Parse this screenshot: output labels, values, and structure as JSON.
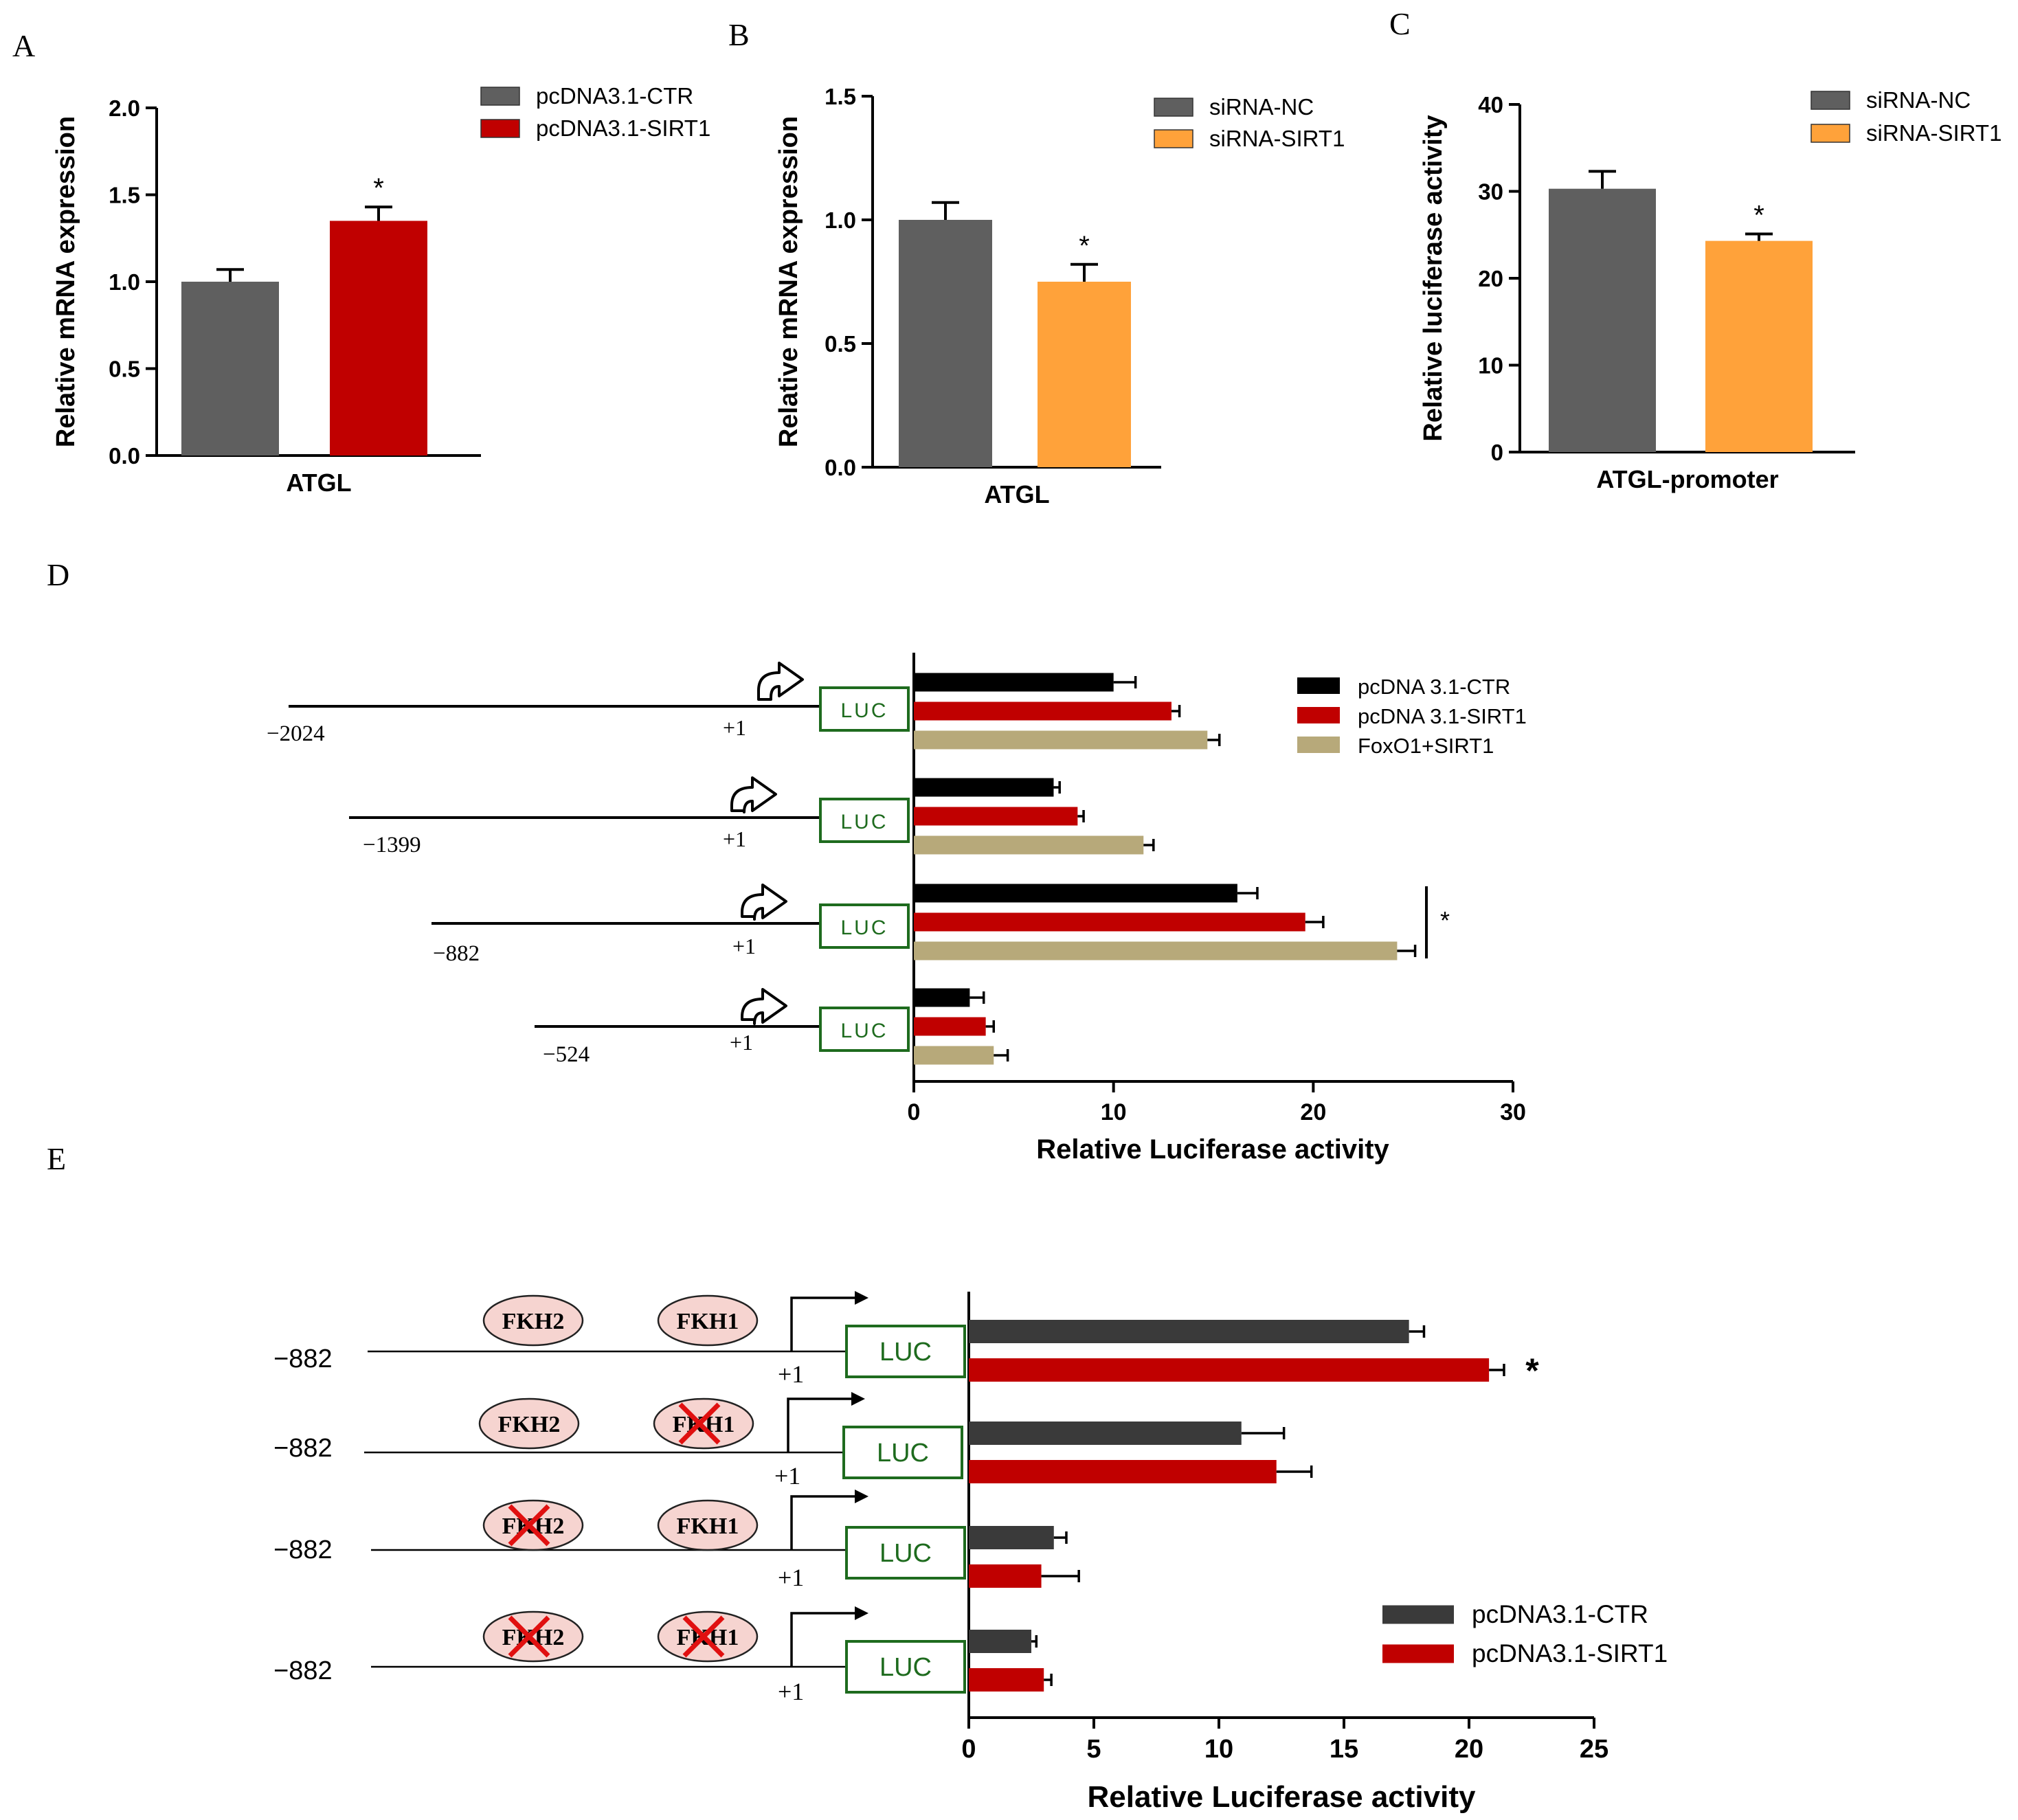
{
  "colors": {
    "dark_gray": "#5f5f5f",
    "dark_gray_e": "#3a3a3a",
    "red": "#c00000",
    "orange": "#ffa23a",
    "black": "#000000",
    "tan": "#b7a97a",
    "luc_green": "#1e6b1e",
    "fkh_fill": "#f6d4d0",
    "cross_red": "#e01010"
  },
  "panel_labels": {
    "a": "A",
    "b": "B",
    "c": "C",
    "d": "D",
    "e": "E"
  },
  "chart_data": [
    {
      "id": "A",
      "type": "bar",
      "ylabel": "Relative mRNA expression",
      "xlabel": "ATGL",
      "ylim": [
        0,
        2.0
      ],
      "yticks": [
        "0.0",
        "0.5",
        "1.0",
        "1.5",
        "2.0"
      ],
      "categories": [
        "ATGL"
      ],
      "series": [
        {
          "name": "pcDNA3.1-CTR",
          "value": 1.0,
          "error": 0.07,
          "color": "#5f5f5f"
        },
        {
          "name": "pcDNA3.1-SIRT1",
          "value": 1.35,
          "error": 0.08,
          "color": "#c00000"
        }
      ],
      "annotations": [
        {
          "series": 1,
          "text": "*"
        }
      ]
    },
    {
      "id": "B",
      "type": "bar",
      "ylabel": "Relative mRNA expression",
      "xlabel": "ATGL",
      "ylim": [
        0,
        1.5
      ],
      "yticks": [
        "0.0",
        "0.5",
        "1.0",
        "1.5"
      ],
      "categories": [
        "ATGL"
      ],
      "series": [
        {
          "name": "siRNA-NC",
          "value": 1.0,
          "error": 0.07,
          "color": "#5f5f5f"
        },
        {
          "name": "siRNA-SIRT1",
          "value": 0.75,
          "error": 0.07,
          "color": "#ffa23a"
        }
      ],
      "annotations": [
        {
          "series": 1,
          "text": "*"
        }
      ]
    },
    {
      "id": "C",
      "type": "bar",
      "ylabel": "Relative luciferase activity",
      "xlabel": "ATGL-promoter",
      "ylim": [
        0,
        40
      ],
      "yticks": [
        "0",
        "10",
        "20",
        "30",
        "40"
      ],
      "categories": [
        "ATGL-promoter"
      ],
      "series": [
        {
          "name": "siRNA-NC",
          "value": 30.3,
          "error": 2.0,
          "color": "#5f5f5f"
        },
        {
          "name": "siRNA-SIRT1",
          "value": 24.3,
          "error": 0.8,
          "color": "#ffa23a"
        }
      ],
      "annotations": [
        {
          "series": 1,
          "text": "*"
        }
      ]
    },
    {
      "id": "D",
      "type": "bar",
      "orientation": "horizontal",
      "xlabel": "Relative Luciferase activity",
      "xlim": [
        0,
        30
      ],
      "xticks": [
        "0",
        "10",
        "20",
        "30"
      ],
      "categories": [
        "-2024",
        "-1399",
        "-882",
        "-524"
      ],
      "series": [
        {
          "name": "pcDNA 3.1-CTR",
          "values": [
            10.0,
            7.0,
            16.2,
            2.8
          ],
          "errors": [
            1.1,
            0.3,
            1.0,
            0.7
          ],
          "color": "#000000"
        },
        {
          "name": "pcDNA 3.1-SIRT1",
          "values": [
            12.9,
            8.2,
            19.6,
            3.6
          ],
          "errors": [
            0.4,
            0.3,
            0.9,
            0.4
          ],
          "color": "#c00000"
        },
        {
          "name": "FoxO1+SIRT1",
          "values": [
            14.7,
            11.5,
            24.2,
            4.0
          ],
          "errors": [
            0.6,
            0.5,
            0.9,
            0.7
          ],
          "color": "#b7a97a"
        }
      ],
      "annotations": [
        {
          "group": 2,
          "text": "*"
        }
      ]
    },
    {
      "id": "E",
      "type": "bar",
      "orientation": "horizontal",
      "xlabel": "Relative Luciferase activity",
      "xlim": [
        0,
        25
      ],
      "xticks": [
        "0",
        "5",
        "10",
        "15",
        "20",
        "25"
      ],
      "categories": [
        "WT",
        "FKH1-mut",
        "FKH2-mut",
        "FKH1+FKH2-mut"
      ],
      "series": [
        {
          "name": "pcDNA3.1-CTR",
          "values": [
            17.6,
            10.9,
            3.4,
            2.5
          ],
          "errors": [
            0.6,
            1.7,
            0.5,
            0.2
          ],
          "color": "#3a3a3a"
        },
        {
          "name": "pcDNA3.1-SIRT1",
          "values": [
            20.8,
            12.3,
            2.9,
            3.0
          ],
          "errors": [
            0.6,
            1.4,
            1.5,
            0.3
          ],
          "color": "#c00000"
        }
      ],
      "annotations": [
        {
          "group": 0,
          "text": "*"
        }
      ]
    }
  ],
  "diagram_d": {
    "luc_label": "LUC",
    "tss_label": "+1",
    "constructs": [
      "−2024",
      "−1399",
      "−882",
      "−524"
    ]
  },
  "diagram_e": {
    "luc_label": "LUC",
    "tss_label": "+1",
    "fkh2_label": "FKH2",
    "fkh1_label": "FKH1",
    "constructs": [
      {
        "start": "−882",
        "fkh2_mut": false,
        "fkh1_mut": false
      },
      {
        "start": "−882",
        "fkh2_mut": false,
        "fkh1_mut": true
      },
      {
        "start": "−882",
        "fkh2_mut": true,
        "fkh1_mut": false
      },
      {
        "start": "−882",
        "fkh2_mut": true,
        "fkh1_mut": true
      }
    ]
  }
}
